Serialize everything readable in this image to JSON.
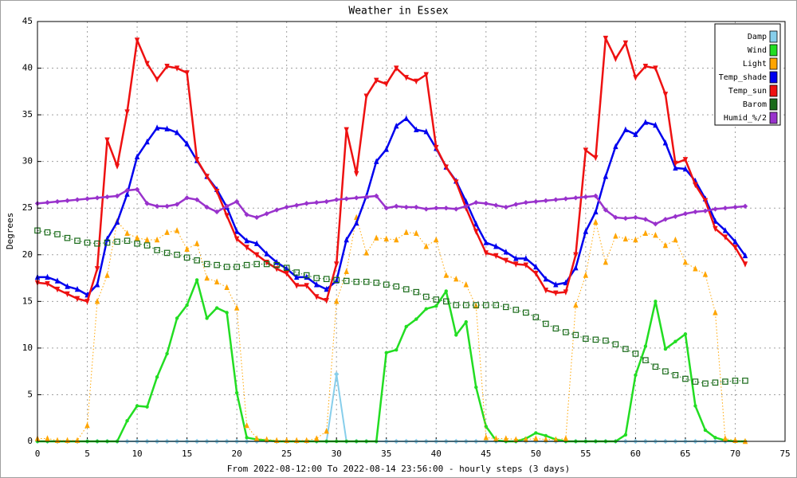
{
  "chart_data": {
    "type": "line",
    "title": "Weather in Essex",
    "y_label": "Degrees",
    "x_label": "From 2022-08-12:00 To 2022-08-14 23:56:00 - hourly steps (3 days)",
    "x": [
      0,
      1,
      2,
      3,
      4,
      5,
      6,
      7,
      8,
      9,
      10,
      11,
      12,
      13,
      14,
      15,
      16,
      17,
      18,
      19,
      20,
      21,
      22,
      23,
      24,
      25,
      26,
      27,
      28,
      29,
      30,
      31,
      32,
      33,
      34,
      35,
      36,
      37,
      38,
      39,
      40,
      41,
      42,
      43,
      44,
      45,
      46,
      47,
      48,
      49,
      50,
      51,
      52,
      53,
      54,
      55,
      56,
      57,
      58,
      59,
      60,
      61,
      62,
      63,
      64,
      65,
      66,
      67,
      68,
      69,
      70,
      71
    ],
    "xlim": [
      0,
      75
    ],
    "xticks": [
      0,
      5,
      10,
      15,
      20,
      25,
      30,
      35,
      40,
      45,
      50,
      55,
      60,
      65,
      70,
      75
    ],
    "ylim": [
      0,
      45
    ],
    "yticks": [
      0,
      5,
      10,
      15,
      20,
      25,
      30,
      35,
      40,
      45
    ],
    "grid": true,
    "legend": "top-right",
    "series": [
      {
        "name": "Damp",
        "color": "#87ceeb",
        "marker": "diamond",
        "width": 2,
        "dash": false,
        "values": [
          0,
          0,
          0,
          0,
          0,
          0,
          0,
          0,
          0,
          0,
          0,
          0,
          0,
          0,
          0,
          0,
          0,
          0,
          0,
          0,
          0,
          0,
          0,
          0,
          0,
          0,
          0,
          0,
          0,
          0,
          7.2,
          0,
          0,
          0,
          0,
          0,
          0,
          0,
          0,
          0,
          0,
          0,
          0,
          0,
          0,
          0,
          0,
          0,
          0,
          0,
          0,
          0,
          0,
          0,
          0,
          0,
          0,
          0,
          0,
          0,
          0,
          0,
          0,
          0,
          0,
          0,
          0,
          0,
          0,
          0,
          0,
          0
        ]
      },
      {
        "name": "Wind",
        "color": "#22dd22",
        "marker": "circle",
        "width": 2.5,
        "dash": false,
        "values": [
          0,
          0,
          0,
          0,
          0,
          0,
          0,
          0,
          0,
          2.2,
          3.8,
          3.7,
          6.9,
          9.4,
          13.2,
          14.6,
          17.3,
          13.2,
          14.3,
          13.8,
          5.2,
          0.4,
          0.2,
          0.1,
          0,
          0,
          0,
          0,
          0,
          0,
          0,
          0,
          0,
          0,
          0,
          9.5,
          9.8,
          12.3,
          13.1,
          14.2,
          14.5,
          16.1,
          11.4,
          12.8,
          5.8,
          1.6,
          0.1,
          0,
          0,
          0.3,
          0.9,
          0.6,
          0.2,
          0,
          0,
          0,
          0,
          0,
          0,
          0.7,
          7.1,
          10.2,
          15,
          9.9,
          10.7,
          11.5,
          3.8,
          1.2,
          0.4,
          0.1,
          0,
          0
        ]
      },
      {
        "name": "Light",
        "color": "#ffa500",
        "marker": "triangle-up",
        "width": 1,
        "dash": true,
        "values": [
          0.3,
          0.3,
          0.1,
          0.1,
          0.1,
          1.7,
          15,
          17.8,
          23.6,
          22.3,
          21.8,
          21.6,
          21.6,
          22.4,
          22.6,
          20.6,
          21.2,
          17.5,
          17.1,
          16.5,
          14.3,
          1.7,
          0.3,
          0.2,
          0.1,
          0.1,
          0.1,
          0.1,
          0.3,
          1.1,
          15,
          18.2,
          24,
          20.2,
          21.8,
          21.7,
          21.6,
          22.4,
          22.3,
          20.9,
          21.6,
          17.8,
          17.4,
          16.8,
          14.5,
          0.4,
          0.3,
          0.3,
          0.2,
          0.2,
          0.3,
          0.2,
          0.2,
          0.3,
          14.6,
          17.8,
          23.5,
          19.2,
          22,
          21.7,
          21.6,
          22.3,
          22.1,
          21,
          21.6,
          19.2,
          18.5,
          17.9,
          13.8,
          0.3,
          0.1,
          0
        ]
      },
      {
        "name": "Temp_shade",
        "color": "#0000ee",
        "marker": "triangle-up",
        "width": 2.5,
        "dash": false,
        "values": [
          17.6,
          17.6,
          17.2,
          16.6,
          16.3,
          15.7,
          16.8,
          21.7,
          23.5,
          26.5,
          30.5,
          32.1,
          33.6,
          33.5,
          33.1,
          31.9,
          30.1,
          28.4,
          27,
          25.1,
          22.5,
          21.5,
          21.2,
          20.1,
          19.2,
          18.5,
          17.6,
          17.6,
          16.8,
          16.3,
          17.2,
          21.6,
          23.4,
          26.3,
          30,
          31.3,
          33.8,
          34.6,
          33.4,
          33.2,
          31.4,
          29.4,
          27.9,
          25.7,
          23.3,
          21.3,
          20.9,
          20.3,
          19.6,
          19.6,
          18.7,
          17.4,
          16.8,
          17,
          18.6,
          22.5,
          24.6,
          28.4,
          31.6,
          33.4,
          32.9,
          34.2,
          33.9,
          32,
          29.3,
          29.2,
          27.9,
          26,
          23.6,
          22.6,
          21.4,
          19.9
        ]
      },
      {
        "name": "Temp_sun",
        "color": "#ee1111",
        "marker": "triangle-down",
        "width": 2.5,
        "dash": false,
        "values": [
          17,
          16.9,
          16.3,
          15.8,
          15.3,
          15,
          18.5,
          32.3,
          29.5,
          35.3,
          43,
          40.5,
          38.8,
          40.2,
          40,
          39.5,
          30.2,
          28.4,
          26.8,
          24.2,
          21.7,
          20.8,
          20,
          19.2,
          18.5,
          18,
          16.7,
          16.7,
          15.5,
          15.1,
          19,
          33.4,
          28.7,
          37,
          38.7,
          38.3,
          40,
          39,
          38.6,
          39.3,
          31.5,
          29.4,
          27.8,
          25,
          22.5,
          20.2,
          19.9,
          19.4,
          19,
          18.9,
          18,
          16.2,
          15.9,
          16,
          20,
          31.2,
          30.4,
          43.2,
          41,
          42.7,
          39,
          40.2,
          40,
          37.2,
          29.8,
          30.2,
          27.5,
          25.8,
          22.8,
          21.9,
          20.8,
          19
        ]
      },
      {
        "name": "Barom",
        "color": "#1a6b1a",
        "marker": "square",
        "width": 1,
        "dash": true,
        "values": [
          22.6,
          22.4,
          22.2,
          21.8,
          21.5,
          21.3,
          21.2,
          21.3,
          21.4,
          21.5,
          21.2,
          21,
          20.5,
          20.2,
          20,
          19.7,
          19.4,
          19,
          18.9,
          18.7,
          18.7,
          18.9,
          19,
          19,
          18.9,
          18.6,
          18.1,
          17.8,
          17.5,
          17.4,
          17.3,
          17.2,
          17.1,
          17.1,
          17,
          16.8,
          16.6,
          16.3,
          16,
          15.5,
          15.2,
          15,
          14.6,
          14.6,
          14.6,
          14.6,
          14.6,
          14.4,
          14.1,
          13.8,
          13.3,
          12.6,
          12.1,
          11.7,
          11.4,
          11,
          10.9,
          10.8,
          10.4,
          9.9,
          9.4,
          8.7,
          8,
          7.5,
          7.1,
          6.7,
          6.4,
          6.2,
          6.3,
          6.4,
          6.5,
          6.5
        ]
      },
      {
        "name": "Humid_%/2",
        "color": "#9932cc",
        "marker": "diamond",
        "width": 2.5,
        "dash": false,
        "values": [
          25.5,
          25.6,
          25.7,
          25.8,
          25.9,
          26,
          26.1,
          26.2,
          26.3,
          26.9,
          27,
          25.5,
          25.2,
          25.2,
          25.4,
          26.1,
          25.9,
          25.1,
          24.6,
          25.2,
          25.7,
          24.3,
          24,
          24.4,
          24.8,
          25.1,
          25.3,
          25.5,
          25.6,
          25.7,
          25.9,
          26,
          26.1,
          26.2,
          26.3,
          25,
          25.2,
          25.1,
          25.1,
          24.9,
          25,
          25,
          24.9,
          25.2,
          25.6,
          25.5,
          25.3,
          25.1,
          25.4,
          25.6,
          25.7,
          25.8,
          25.9,
          26,
          26.1,
          26.2,
          26.3,
          24.8,
          24,
          23.9,
          24,
          23.8,
          23.3,
          23.8,
          24.1,
          24.4,
          24.6,
          24.7,
          24.9,
          25,
          25.1,
          25.2
        ]
      }
    ]
  }
}
